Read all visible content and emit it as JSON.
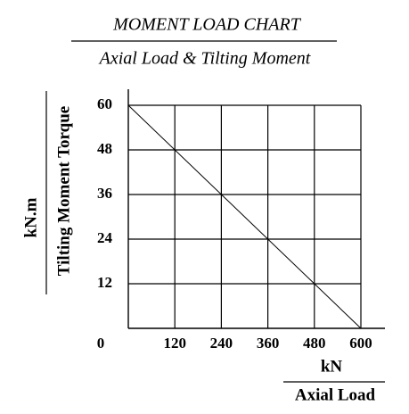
{
  "chart_data": {
    "type": "line",
    "title": "MOMENT LOAD CHART",
    "subtitle": "Axial Load & Tilting Moment",
    "y_unit": "kN.m",
    "ylabel": "Tilting Moment Torque",
    "x_unit": "kN",
    "xlabel": "Axial Load",
    "x": [
      0,
      600
    ],
    "series": [
      {
        "color": "#000000",
        "values": [
          60,
          0
        ]
      }
    ],
    "xlim": [
      0,
      600
    ],
    "ylim": [
      0,
      60
    ],
    "xticks": [
      0,
      120,
      240,
      360,
      480,
      600
    ],
    "yticks": [
      12,
      24,
      36,
      48,
      60
    ],
    "grid": true
  }
}
